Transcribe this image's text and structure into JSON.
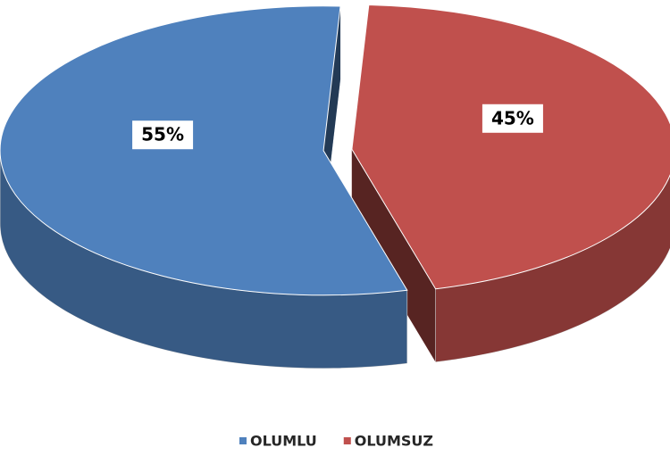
{
  "chart_data": {
    "type": "pie",
    "categories": [
      "OLUMLU",
      "OLUMSUZ"
    ],
    "values": [
      55,
      45
    ],
    "value_labels": [
      "55%",
      "45%"
    ],
    "colors": [
      "#4f81bd",
      "#c0504d"
    ],
    "legend": "bottom"
  }
}
